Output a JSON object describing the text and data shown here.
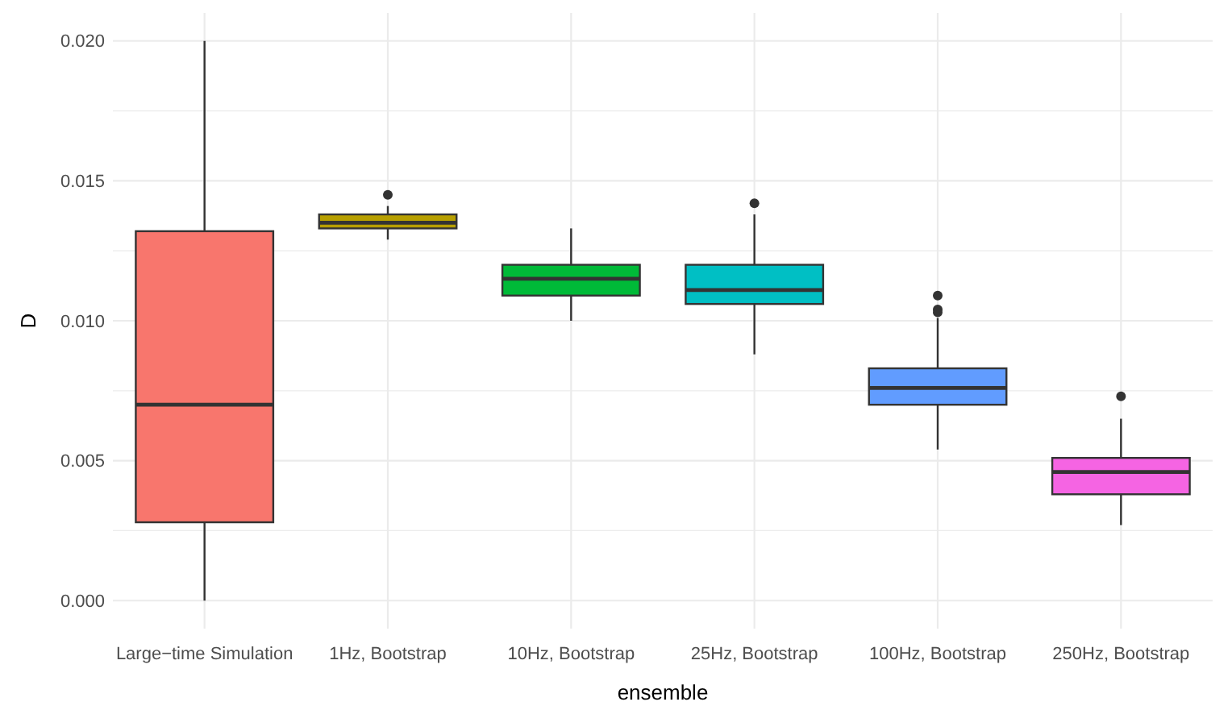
{
  "chart_data": {
    "type": "box",
    "xlabel": "ensemble",
    "ylabel": "D",
    "categories": [
      "Large−time Simulation",
      "1Hz, Bootstrap",
      "10Hz, Bootstrap",
      "25Hz, Bootstrap",
      "100Hz, Bootstrap",
      "250Hz, Bootstrap"
    ],
    "colors": [
      "#f8766d",
      "#b79f00",
      "#00ba38",
      "#00bfc4",
      "#619cff",
      "#f564e3"
    ],
    "boxes": [
      {
        "low": 0.0,
        "q1": 0.0028,
        "median": 0.007,
        "q3": 0.0132,
        "high": 0.02
      },
      {
        "low": 0.0129,
        "q1": 0.0133,
        "median": 0.0135,
        "q3": 0.0138,
        "high": 0.0141,
        "outliers": [
          0.0145
        ]
      },
      {
        "low": 0.01,
        "q1": 0.0109,
        "median": 0.0115,
        "q3": 0.012,
        "high": 0.0133
      },
      {
        "low": 0.0088,
        "q1": 0.0106,
        "median": 0.0111,
        "q3": 0.012,
        "high": 0.0138,
        "outliers": [
          0.0142
        ]
      },
      {
        "low": 0.0054,
        "q1": 0.007,
        "median": 0.0076,
        "q3": 0.0083,
        "high": 0.0101,
        "outliers": [
          0.0109,
          0.0104,
          0.0103
        ]
      },
      {
        "low": 0.0027,
        "q1": 0.0038,
        "median": 0.0046,
        "q3": 0.0051,
        "high": 0.0065,
        "outliers": [
          0.0073
        ]
      }
    ],
    "ylim": [
      -0.001,
      0.021
    ],
    "yticks": [
      {
        "value": 0,
        "label": "0.000"
      },
      {
        "value": 0.0025,
        "label": null
      },
      {
        "value": 0.005,
        "label": "0.005"
      },
      {
        "value": 0.0075,
        "label": null
      },
      {
        "value": 0.01,
        "label": "0.010"
      },
      {
        "value": 0.0125,
        "label": null
      },
      {
        "value": 0.015,
        "label": "0.015"
      },
      {
        "value": 0.0175,
        "label": null
      },
      {
        "value": 0.02,
        "label": "0.020"
      }
    ],
    "grid": true
  }
}
